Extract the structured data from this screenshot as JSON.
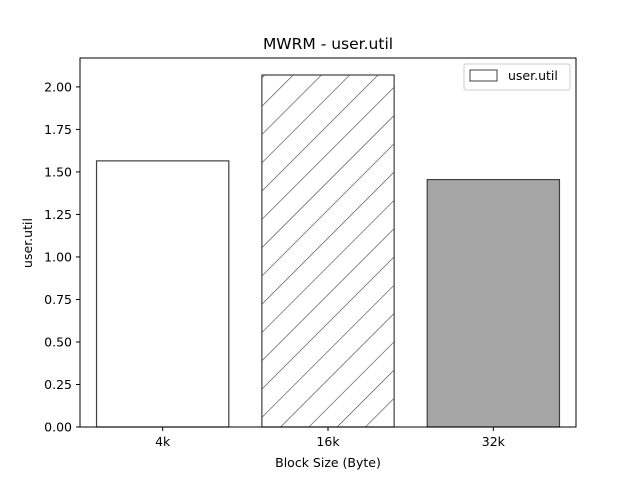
{
  "chart_data": {
    "type": "bar",
    "title": "MWRM - user.util",
    "xlabel": "Block Size (Byte)",
    "ylabel": "user.util",
    "categories": [
      "4k",
      "16k",
      "32k"
    ],
    "series": [
      {
        "name": "user.util",
        "values": [
          1.565,
          2.07,
          1.455
        ]
      }
    ],
    "bar_fills": [
      "#ffffff",
      "hatch",
      "#a6a6a6"
    ],
    "edge_color": "#404040",
    "ylim": [
      0,
      2.17
    ],
    "yticks": [
      0.0,
      0.25,
      0.5,
      0.75,
      1.0,
      1.25,
      1.5,
      1.75,
      2.0
    ],
    "ytick_labels": [
      "0.00",
      "0.25",
      "0.50",
      "0.75",
      "1.00",
      "1.25",
      "1.50",
      "1.75",
      "2.00"
    ],
    "grid": false,
    "legend_position": "top-right",
    "legend_label": "user.util"
  }
}
